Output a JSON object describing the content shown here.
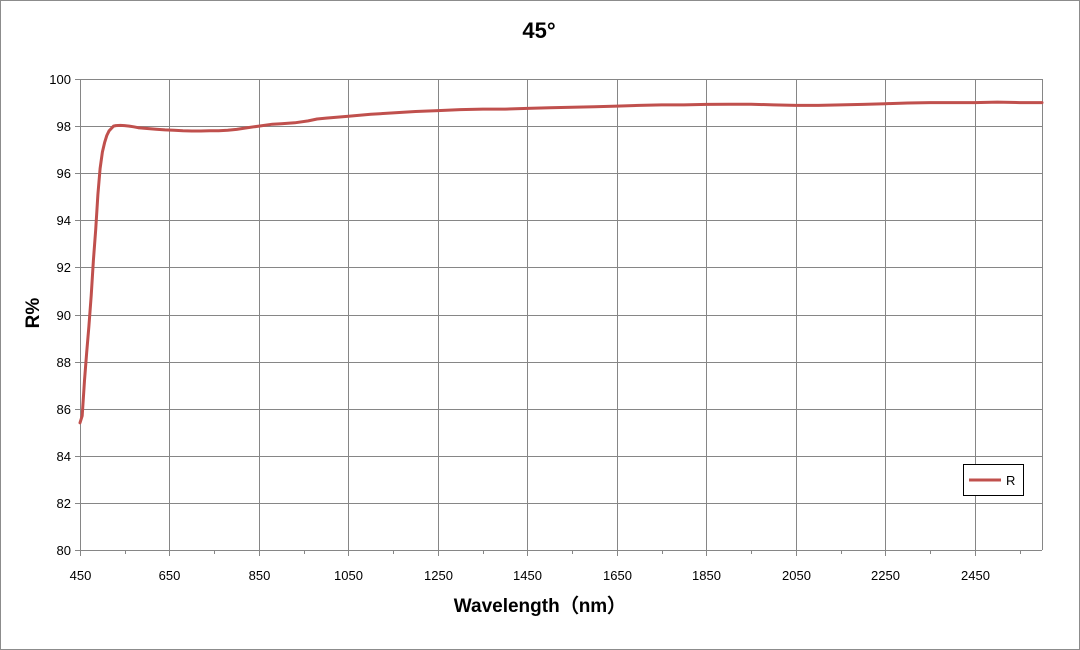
{
  "chart_data": {
    "type": "line",
    "title": "45°",
    "xlabel": "Wavelength（nm）",
    "ylabel": "R%",
    "xlim": [
      450,
      2600
    ],
    "ylim": [
      80,
      100
    ],
    "x_ticks": [
      450,
      650,
      850,
      1050,
      1250,
      1450,
      1650,
      1850,
      2050,
      2250,
      2450
    ],
    "y_ticks": [
      80,
      82,
      84,
      86,
      88,
      90,
      92,
      94,
      96,
      98,
      100
    ],
    "grid": true,
    "legend_position": "bottom-right",
    "colors": {
      "series": "#c0504d",
      "grid": "#868686",
      "axis": "#868686"
    },
    "series": [
      {
        "name": "R",
        "x": [
          450,
          455,
          460,
          465,
          470,
          475,
          480,
          485,
          490,
          495,
          500,
          505,
          510,
          515,
          520,
          525,
          530,
          540,
          550,
          560,
          570,
          580,
          600,
          620,
          640,
          660,
          680,
          700,
          720,
          740,
          760,
          780,
          800,
          820,
          850,
          880,
          900,
          930,
          960,
          980,
          1000,
          1050,
          1100,
          1150,
          1200,
          1250,
          1300,
          1350,
          1400,
          1450,
          1500,
          1550,
          1600,
          1650,
          1700,
          1750,
          1800,
          1850,
          1900,
          1950,
          2000,
          2050,
          2100,
          2150,
          2200,
          2250,
          2300,
          2350,
          2400,
          2450,
          2500,
          2550,
          2600
        ],
        "values": [
          85.4,
          85.7,
          87.2,
          88.4,
          89.5,
          90.8,
          92.3,
          93.6,
          95.1,
          96.2,
          96.9,
          97.3,
          97.6,
          97.8,
          97.9,
          98.0,
          98.02,
          98.03,
          98.02,
          98.0,
          97.97,
          97.93,
          97.9,
          97.87,
          97.84,
          97.82,
          97.8,
          97.79,
          97.79,
          97.8,
          97.8,
          97.82,
          97.86,
          97.92,
          98.0,
          98.08,
          98.1,
          98.14,
          98.22,
          98.3,
          98.34,
          98.42,
          98.5,
          98.56,
          98.62,
          98.66,
          98.7,
          98.72,
          98.72,
          98.75,
          98.78,
          98.8,
          98.82,
          98.85,
          98.88,
          98.9,
          98.9,
          98.92,
          98.93,
          98.93,
          98.9,
          98.88,
          98.88,
          98.9,
          98.92,
          98.95,
          98.98,
          99.0,
          99.0,
          99.0,
          99.02,
          99.0,
          99.0
        ]
      }
    ]
  }
}
